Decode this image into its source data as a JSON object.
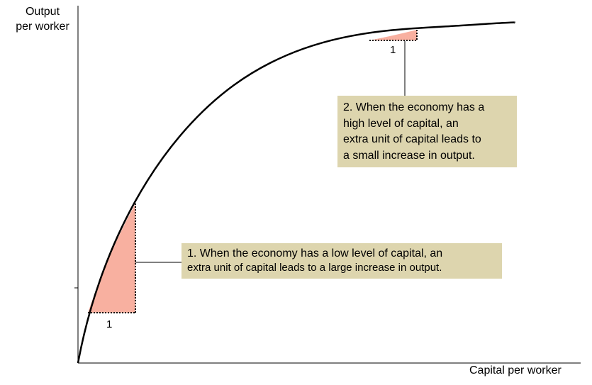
{
  "axes": {
    "y_label_line1": "Output",
    "y_label_line2": "per worker",
    "x_label": "Capital per worker"
  },
  "annotations": {
    "low_capital": {
      "unit_label": "1",
      "line1": "1. When the economy has a low level of capital, an",
      "line2": "extra unit of capital leads to a large increase in output."
    },
    "high_capital": {
      "unit_label": "1",
      "lines": [
        "2. When the economy has a",
        "high level of capital, an",
        "extra unit of capital leads to",
        "a small increase in output."
      ]
    }
  },
  "colors": {
    "curve": "#000000",
    "triangle_fill": "#f8b0a0",
    "box_fill": "#ddd5ae"
  }
}
